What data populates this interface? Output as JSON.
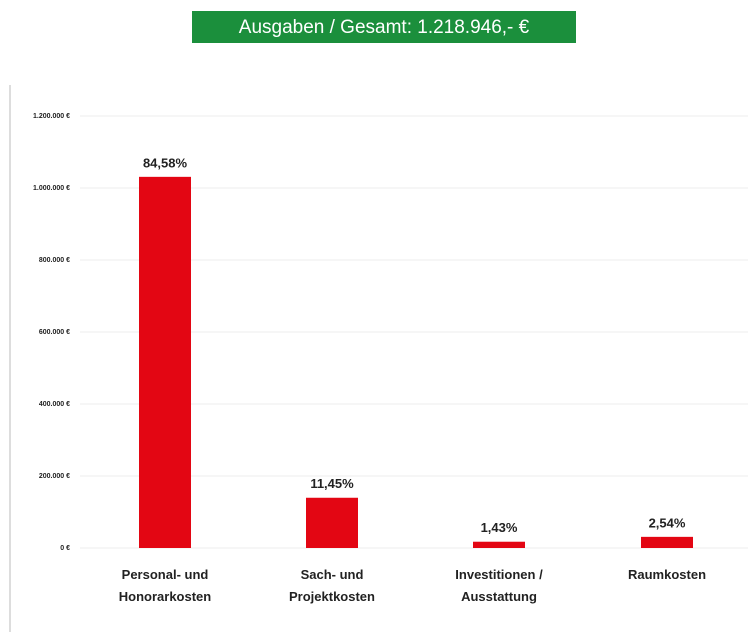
{
  "chart_data": {
    "type": "bar",
    "title": "Ausgaben / Gesamt: 1.218.946,- €",
    "categories": [
      "Personal- und\nHonorarkosten",
      "Sach- und\nProjektkosten",
      "Investitionen /\nAusstattung",
      "Raumkosten"
    ],
    "values": [
      1030985,
      139569,
      17431,
      30961
    ],
    "shares": [
      84.58,
      11.45,
      1.43,
      2.54
    ],
    "share_labels": [
      "84,58%",
      "11,45%",
      "1,43%",
      "2,54%"
    ],
    "color": "#e30613",
    "ylim": [
      0,
      1200000
    ],
    "yticks": [
      {
        "value": 0,
        "label": "0 €"
      },
      {
        "value": 200000,
        "label": "200.000 €"
      },
      {
        "value": 400000,
        "label": "400.000 €"
      },
      {
        "value": 600000,
        "label": "600.000 €"
      },
      {
        "value": 800000,
        "label": "800.000 €"
      },
      {
        "value": 1000000,
        "label": "1.000.000 €"
      },
      {
        "value": 1200000,
        "label": "1.200.000 €"
      }
    ],
    "grid": true
  }
}
